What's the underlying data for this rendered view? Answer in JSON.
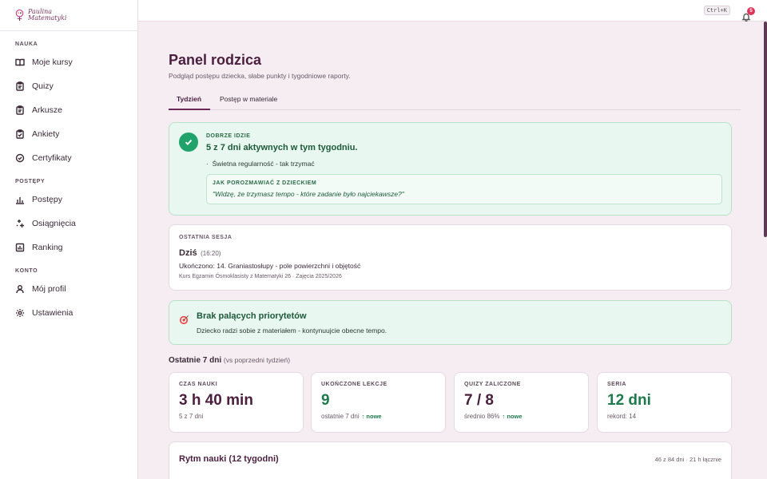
{
  "brand": {
    "line1": "Paulina",
    "line2": "Matematyki"
  },
  "sidebar": {
    "sections": [
      {
        "title": "NAUKA",
        "items": [
          {
            "label": "Moje kursy",
            "icon": "book-icon"
          },
          {
            "label": "Quizy",
            "icon": "clipboard-icon"
          },
          {
            "label": "Arkusze",
            "icon": "clipboard-icon"
          },
          {
            "label": "Ankiety",
            "icon": "clipboard-check-icon"
          },
          {
            "label": "Certyfikaty",
            "icon": "badge-check-icon"
          }
        ]
      },
      {
        "title": "POSTĘPY",
        "items": [
          {
            "label": "Postępy",
            "icon": "bar-chart-icon"
          },
          {
            "label": "Osiągnięcia",
            "icon": "sparkles-icon"
          },
          {
            "label": "Ranking",
            "icon": "chart-box-icon"
          }
        ]
      },
      {
        "title": "KONTO",
        "items": [
          {
            "label": "Mój profil",
            "icon": "user-icon"
          },
          {
            "label": "Ustawienia",
            "icon": "gear-icon"
          }
        ]
      }
    ]
  },
  "topbar": {
    "shortcut": "Ctrl+K",
    "notifications": "5"
  },
  "page": {
    "title": "Panel rodzica",
    "subtitle": "Podgląd postępu dziecka, słabe punkty i tygodniowe raporty.",
    "tabs": [
      "Tydzień",
      "Postęp w materiale"
    ]
  },
  "status": {
    "eyebrow": "DOBRZE IDZIE",
    "title": "5 z 7 dni aktywnych w tym tygodniu.",
    "bullet": "Świetna regularność - tak trzymać",
    "talk_label": "JAK POROZMAWIAĆ Z DZIECKIEM",
    "talk_quote": "\"Widzę, że trzymasz tempo - które zadanie było najciekawsze?\""
  },
  "last_session": {
    "eyebrow": "OSTATNIA SESJA",
    "day": "Dziś",
    "time": "(16:20)",
    "completed": "Ukończono: 14. Graniastosłupy - pole powierzchni i objętość",
    "course": "Kurs Egzamin Ósmoklasisty z Matematyki 26 · Zajęcia 2025/2026"
  },
  "priorities": {
    "icon": "target-icon",
    "title": "Brak palących priorytetów",
    "text": "Dziecko radzi sobie z materiałem - kontynuujcie obecne tempo."
  },
  "week": {
    "title": "Ostatnie 7 dni",
    "subtitle": "(vs poprzedni tydzień)",
    "stats": [
      {
        "label": "CZAS NAUKI",
        "value": "3 h 40 min",
        "foot": "5 z 7 dni",
        "trend": "",
        "color": "dark"
      },
      {
        "label": "UKOŃCZONE LEKCJE",
        "value": "9",
        "foot": "ostatnie 7 dni",
        "trend": "↑ nowe",
        "color": "green"
      },
      {
        "label": "QUIZY ZALICZONE",
        "value": "7 / 8",
        "foot": "średnio 86%",
        "trend": "↑ nowe",
        "color": "dark"
      },
      {
        "label": "SERIA",
        "value": "12 dni",
        "foot": "rekord: 14",
        "trend": "",
        "color": "green"
      }
    ]
  },
  "rhythm": {
    "title": "Rytm nauki (12 tygodni)",
    "meta": "46 z 84 dni · 21 h łącznie"
  }
}
